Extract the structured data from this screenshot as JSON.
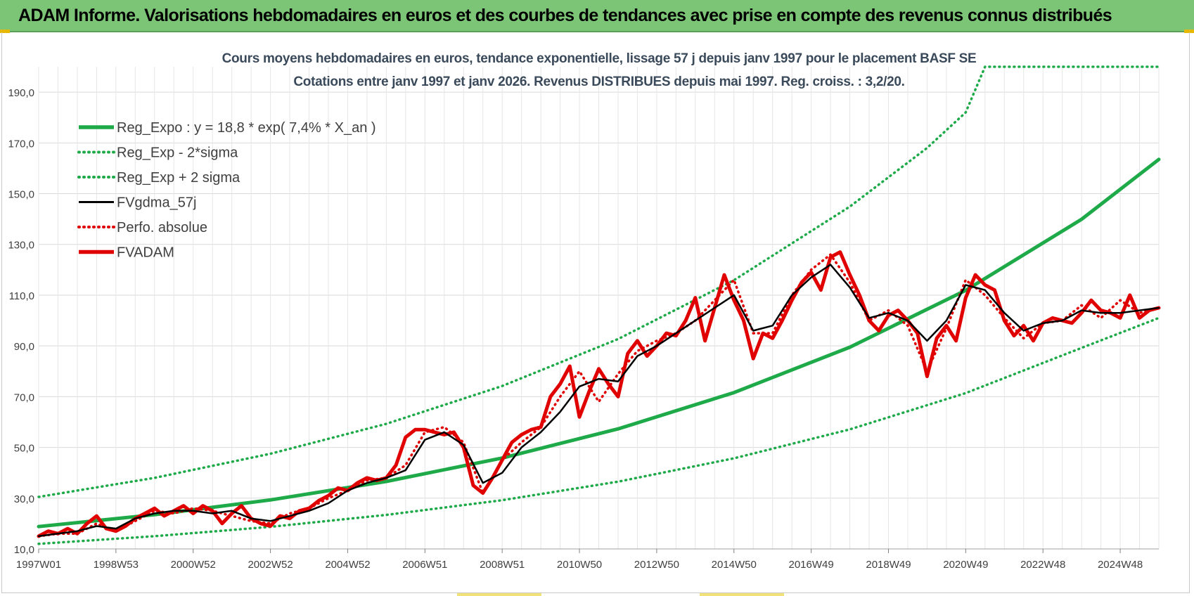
{
  "header": {
    "title": "ADAM Informe. Valorisations hebdomadaires en euros et des courbes de tendances avec prise en compte des revenus connus distribués"
  },
  "chart_data": {
    "type": "line",
    "title": "Cours moyens hebdomadaires en euros, tendance exponentielle, lissage 57 j depuis janv 1997 pour le placement BASF SE",
    "subtitle": "Cotations entre janv 1997 et janv 2026. Revenus DISTRIBUES depuis mai 1997. Reg. croiss. : 3,2/20.",
    "xlabel": "",
    "ylabel": "",
    "xlim": [
      1997.0,
      2026.0
    ],
    "ylim": [
      10,
      200
    ],
    "yticks": [
      10,
      30,
      50,
      70,
      90,
      110,
      130,
      150,
      170,
      190
    ],
    "ytick_labels": [
      "10,0",
      "30,0",
      "50,0",
      "70,0",
      "90,0",
      "110,0",
      "130,0",
      "150,0",
      "170,0",
      "190,0"
    ],
    "xticks": [
      1997.0,
      1999.0,
      2001.0,
      2003.0,
      2005.0,
      2007.0,
      2009.0,
      2011.0,
      2013.0,
      2015.0,
      2017.0,
      2019.0,
      2021.0,
      2023.0,
      2025.0
    ],
    "xtick_labels": [
      "1997W01",
      "1998W53",
      "2000W52",
      "2002W52",
      "2004W52",
      "2006W51",
      "2008W51",
      "2010W50",
      "2012W50",
      "2014W50",
      "2016W49",
      "2018W49",
      "2020W49",
      "2022W48",
      "2024W48"
    ],
    "grid": true,
    "legend_position": "top-left",
    "series": [
      {
        "name": "Reg_Expo : y = 18,8 * exp( 7,4% *  X_an )",
        "color": "#1faa4a",
        "style": "solid-thick",
        "x": [
          1997.0,
          2000.0,
          2003.0,
          2006.0,
          2009.0,
          2012.0,
          2015.0,
          2018.0,
          2021.0,
          2024.0,
          2026.0
        ],
        "values": [
          18.8,
          23.5,
          29.3,
          36.6,
          45.8,
          57.3,
          71.6,
          89.5,
          111.9,
          139.9,
          163.5
        ]
      },
      {
        "name": "Reg_Exp - 2*sigma",
        "color": "#1faa4a",
        "style": "dotted",
        "x": [
          1997.0,
          2000.0,
          2003.0,
          2006.0,
          2009.0,
          2012.0,
          2015.0,
          2018.0,
          2021.0,
          2024.0,
          2026.0
        ],
        "values": [
          12.0,
          15.0,
          18.7,
          23.4,
          29.2,
          36.5,
          45.7,
          57.1,
          71.4,
          89.2,
          101.0
        ]
      },
      {
        "name": "Reg_Exp + 2 sigma",
        "color": "#1faa4a",
        "style": "dotted",
        "x": [
          1997.0,
          2000.0,
          2003.0,
          2006.0,
          2009.0,
          2012.0,
          2015.0,
          2018.0,
          2020.0,
          2021.0,
          2021.5,
          2026.0
        ],
        "values": [
          30.5,
          38.0,
          47.5,
          59.3,
          74.2,
          92.7,
          115.9,
          144.9,
          168.0,
          182.0,
          200.0,
          200.0
        ]
      },
      {
        "name": "FVgdma_57j",
        "color": "#000000",
        "style": "solid",
        "x": [
          1997.0,
          1997.5,
          1998.0,
          1998.5,
          1999.0,
          1999.5,
          2000.0,
          2000.5,
          2001.0,
          2001.5,
          2002.0,
          2002.5,
          2003.0,
          2003.5,
          2004.0,
          2004.5,
          2005.0,
          2005.5,
          2006.0,
          2006.5,
          2007.0,
          2007.5,
          2008.0,
          2008.5,
          2009.0,
          2009.5,
          2010.0,
          2010.5,
          2011.0,
          2011.5,
          2012.0,
          2012.5,
          2013.0,
          2013.5,
          2014.0,
          2014.5,
          2015.0,
          2015.5,
          2016.0,
          2016.5,
          2017.0,
          2017.5,
          2018.0,
          2018.5,
          2019.0,
          2019.5,
          2020.0,
          2020.5,
          2021.0,
          2021.5,
          2022.0,
          2022.5,
          2023.0,
          2023.5,
          2024.0,
          2024.5,
          2025.0,
          2025.5,
          2026.0
        ],
        "values": [
          15,
          16,
          17,
          19,
          18,
          22,
          24,
          25,
          25,
          24,
          25,
          22,
          21,
          23,
          25,
          28,
          33,
          36,
          38,
          41,
          53,
          56,
          51,
          36,
          40,
          50,
          56,
          64,
          74,
          77,
          76,
          86,
          90,
          95,
          100,
          105,
          110,
          96,
          98,
          110,
          117,
          122,
          113,
          101,
          103,
          100,
          92,
          100,
          114,
          112,
          103,
          96,
          99,
          100,
          104,
          103,
          103,
          104,
          105
        ]
      },
      {
        "name": "Perfo. absolue",
        "color": "#e00000",
        "style": "dotted",
        "x": [
          1997.0,
          1997.5,
          1998.0,
          1998.5,
          1999.0,
          1999.5,
          2000.0,
          2000.5,
          2001.0,
          2001.5,
          2002.0,
          2002.5,
          2003.0,
          2003.5,
          2004.0,
          2004.5,
          2005.0,
          2005.5,
          2006.0,
          2006.5,
          2007.0,
          2007.5,
          2008.0,
          2008.5,
          2009.0,
          2009.5,
          2010.0,
          2010.5,
          2011.0,
          2011.5,
          2012.0,
          2012.5,
          2013.0,
          2013.5,
          2014.0,
          2014.5,
          2015.0,
          2015.5,
          2016.0,
          2016.5,
          2017.0,
          2017.5,
          2018.0,
          2018.5,
          2019.0,
          2019.5,
          2020.0,
          2020.5,
          2021.0,
          2021.5,
          2022.0,
          2022.5,
          2023.0,
          2023.5,
          2024.0,
          2024.5,
          2025.0,
          2025.5,
          2026.0
        ],
        "values": [
          15,
          16,
          16,
          20,
          17,
          21,
          25,
          24,
          26,
          25,
          23,
          21,
          20,
          24,
          26,
          30,
          33,
          37,
          38,
          43,
          56,
          58,
          52,
          32,
          45,
          52,
          58,
          70,
          80,
          68,
          79,
          88,
          92,
          95,
          100,
          108,
          116,
          95,
          95,
          110,
          120,
          126,
          115,
          100,
          104,
          98,
          80,
          97,
          116,
          110,
          101,
          93,
          99,
          100,
          106,
          101,
          108,
          103,
          105
        ]
      },
      {
        "name": "FVADAM",
        "color": "#e00000",
        "style": "solid-thick",
        "x": [
          1997.0,
          1997.25,
          1997.5,
          1997.75,
          1998.0,
          1998.25,
          1998.5,
          1998.75,
          1999.0,
          1999.25,
          1999.5,
          1999.75,
          2000.0,
          2000.25,
          2000.5,
          2000.75,
          2001.0,
          2001.25,
          2001.5,
          2001.75,
          2002.0,
          2002.25,
          2002.5,
          2002.75,
          2003.0,
          2003.25,
          2003.5,
          2003.75,
          2004.0,
          2004.25,
          2004.5,
          2004.75,
          2005.0,
          2005.25,
          2005.5,
          2005.75,
          2006.0,
          2006.25,
          2006.5,
          2006.75,
          2007.0,
          2007.25,
          2007.5,
          2007.75,
          2008.0,
          2008.25,
          2008.5,
          2008.75,
          2009.0,
          2009.25,
          2009.5,
          2009.75,
          2010.0,
          2010.25,
          2010.5,
          2010.75,
          2011.0,
          2011.25,
          2011.5,
          2011.75,
          2012.0,
          2012.25,
          2012.5,
          2012.75,
          2013.0,
          2013.25,
          2013.5,
          2013.75,
          2014.0,
          2014.25,
          2014.5,
          2014.75,
          2015.0,
          2015.25,
          2015.5,
          2015.75,
          2016.0,
          2016.25,
          2016.5,
          2016.75,
          2017.0,
          2017.25,
          2017.5,
          2017.75,
          2018.0,
          2018.25,
          2018.5,
          2018.75,
          2019.0,
          2019.25,
          2019.5,
          2019.75,
          2020.0,
          2020.25,
          2020.5,
          2020.75,
          2021.0,
          2021.25,
          2021.5,
          2021.75,
          2022.0,
          2022.25,
          2022.5,
          2022.75,
          2023.0,
          2023.25,
          2023.5,
          2023.75,
          2024.0,
          2024.25,
          2024.5,
          2024.75,
          2025.0,
          2025.25,
          2025.5,
          2025.75,
          2026.0
        ],
        "values": [
          15,
          17,
          16,
          18,
          16,
          20,
          23,
          18,
          17,
          19,
          22,
          24,
          26,
          23,
          25,
          27,
          24,
          27,
          25,
          20,
          24,
          27,
          22,
          20,
          19,
          23,
          22,
          25,
          26,
          29,
          31,
          34,
          33,
          36,
          38,
          37,
          38,
          43,
          54,
          57,
          57,
          56,
          55,
          56,
          50,
          35,
          32,
          38,
          45,
          52,
          55,
          57,
          58,
          70,
          75,
          82,
          62,
          72,
          81,
          75,
          70,
          87,
          92,
          86,
          90,
          95,
          94,
          100,
          109,
          92,
          105,
          118,
          108,
          100,
          85,
          95,
          93,
          100,
          108,
          115,
          119,
          112,
          125,
          127,
          118,
          110,
          100,
          96,
          102,
          104,
          100,
          95,
          78,
          93,
          98,
          92,
          109,
          118,
          114,
          112,
          100,
          94,
          98,
          92,
          99,
          101,
          100,
          99,
          103,
          108,
          104,
          103,
          101,
          110,
          101,
          104,
          105
        ]
      }
    ]
  }
}
